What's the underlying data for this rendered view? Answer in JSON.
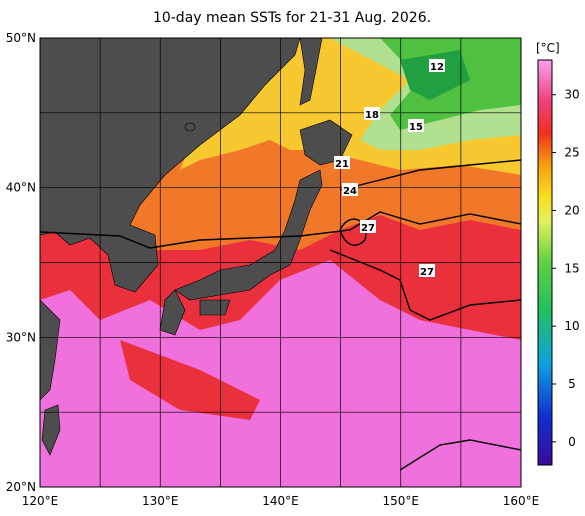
{
  "title": "10-day mean SSTs for 21-31 Aug. 2026.",
  "map": {
    "xlim": [
      120,
      160
    ],
    "ylim": [
      20,
      50
    ],
    "xticks": [
      {
        "value": 120,
        "label": "120°E"
      },
      {
        "value": 130,
        "label": "130°E"
      },
      {
        "value": 140,
        "label": "140°E"
      },
      {
        "value": 150,
        "label": "150°E"
      },
      {
        "value": 160,
        "label": "160°E"
      }
    ],
    "yticks": [
      {
        "value": 20,
        "label": "20°N"
      },
      {
        "value": 30,
        "label": "30°N"
      },
      {
        "value": 40,
        "label": "40°N"
      },
      {
        "value": 50,
        "label": "50°N"
      }
    ],
    "contour_labels": [
      12,
      18,
      15,
      21,
      24,
      27,
      27
    ]
  },
  "colorbar": {
    "unit": "[°C]",
    "lim": [
      -2,
      33
    ],
    "ticks": [
      0,
      5,
      10,
      15,
      20,
      25,
      30
    ]
  }
}
